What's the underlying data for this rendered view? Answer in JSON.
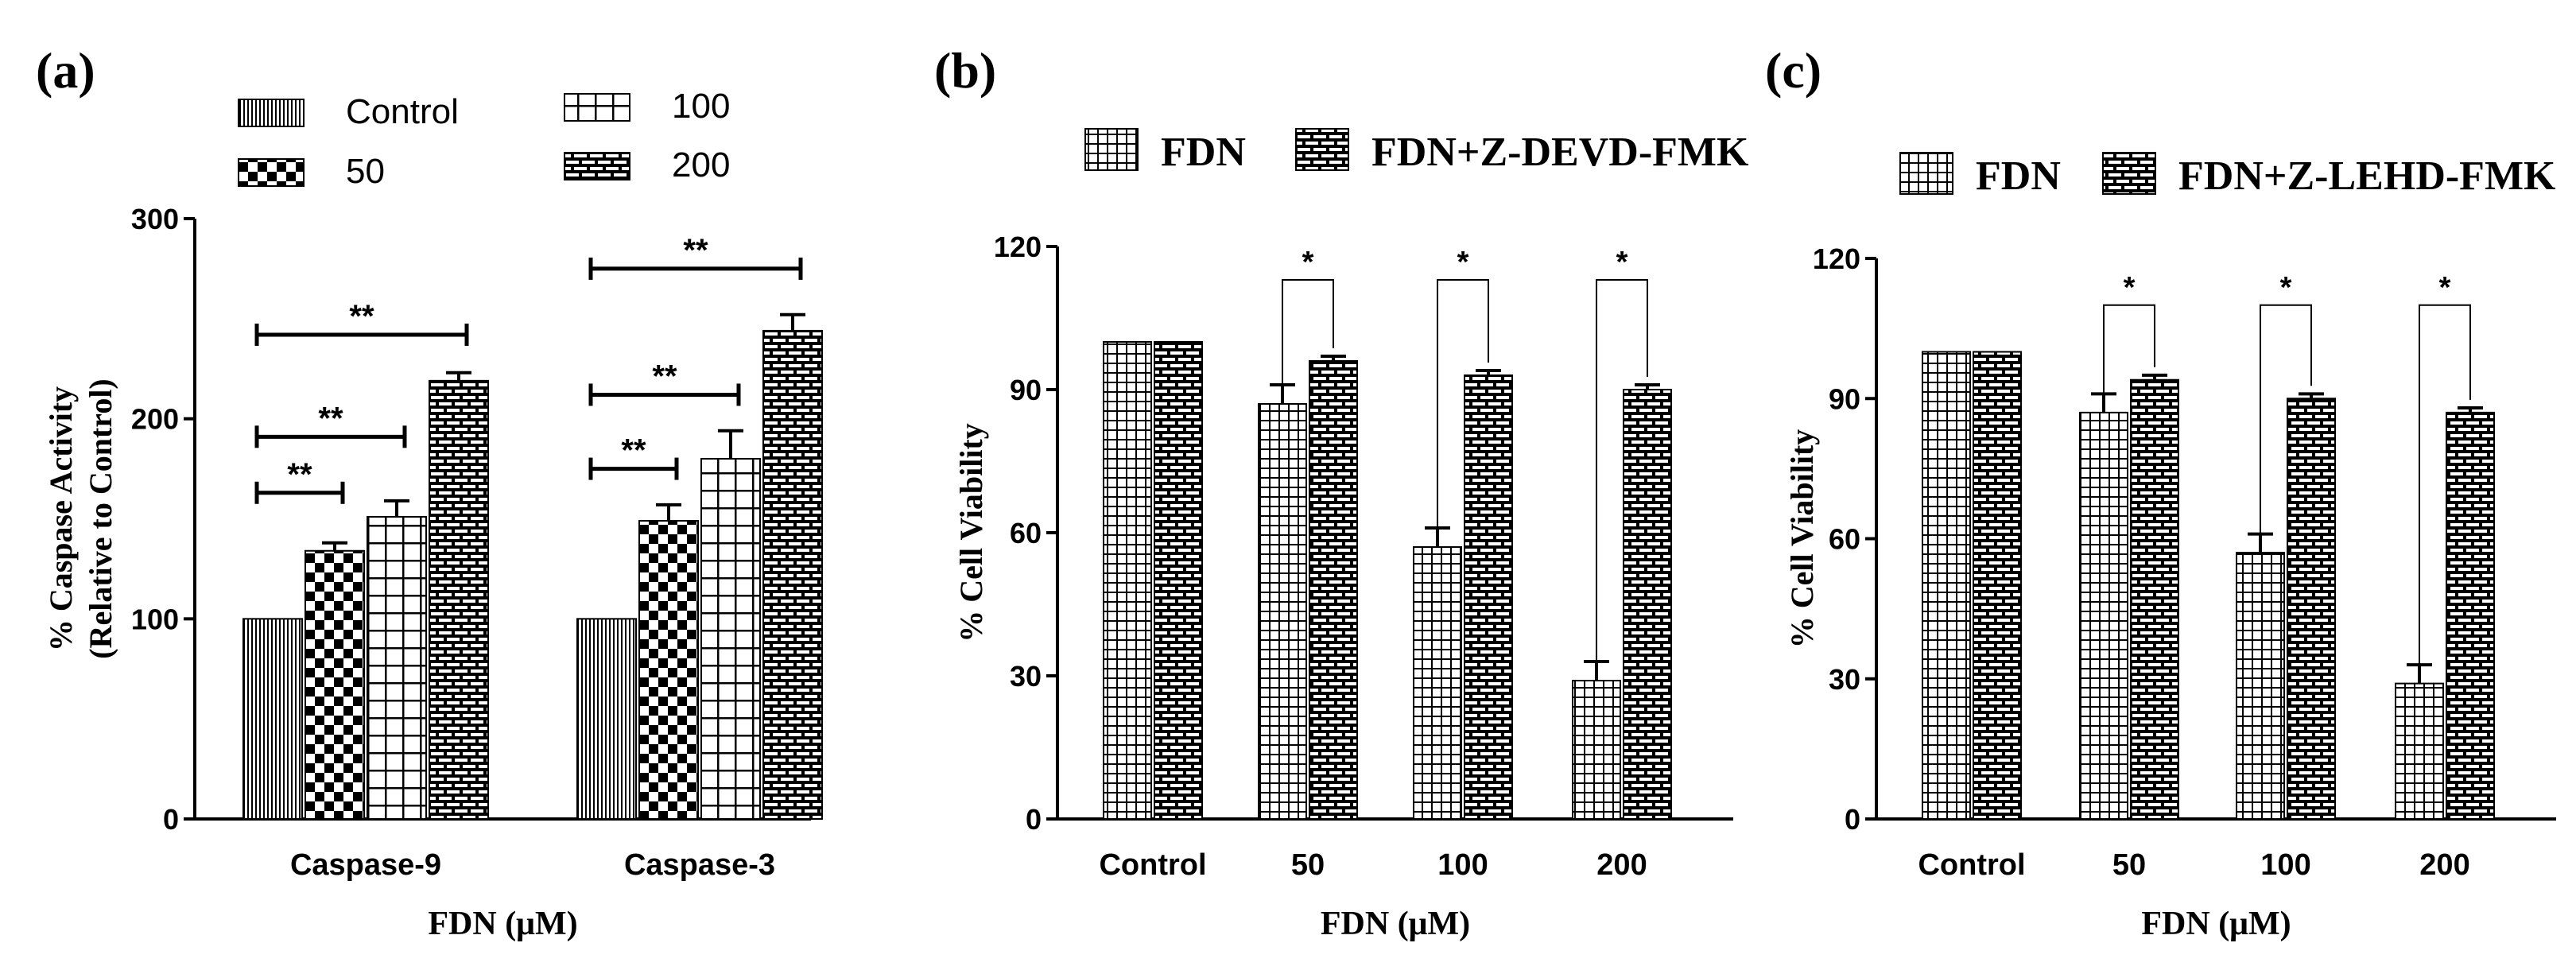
{
  "chart_data": [
    {
      "panel_label": "(a)",
      "type": "bar",
      "xlabel": "FDN (μM)",
      "ylabel_line1": "% Caspase Activity",
      "ylabel_line2": "(Relative to Control)",
      "ylim": [
        0,
        300
      ],
      "yticks": [
        0,
        100,
        200,
        300
      ],
      "ytick_labels": [
        "0",
        "100",
        "200",
        "300"
      ],
      "categories": [
        "Caspase-9",
        "Caspase-3"
      ],
      "legend": [
        "Control",
        "100",
        "50",
        "200"
      ],
      "series": [
        {
          "name": "Control",
          "values": [
            100,
            100
          ],
          "errors": [
            0,
            0
          ]
        },
        {
          "name": "50",
          "values": [
            134,
            149
          ],
          "errors": [
            4,
            8
          ]
        },
        {
          "name": "100",
          "values": [
            151,
            180
          ],
          "errors": [
            8,
            14
          ]
        },
        {
          "name": "200",
          "values": [
            219,
            244
          ],
          "errors": [
            4,
            8
          ]
        }
      ],
      "significance": [
        {
          "category": 0,
          "from": 0,
          "to": 1,
          "y": 163,
          "label": "**"
        },
        {
          "category": 0,
          "from": 0,
          "to": 2,
          "y": 191,
          "label": "**"
        },
        {
          "category": 0,
          "from": 0,
          "to": 3,
          "y": 242,
          "label": "**"
        },
        {
          "category": 1,
          "from": 0,
          "to": 1,
          "y": 175,
          "label": "**"
        },
        {
          "category": 1,
          "from": 0,
          "to": 2,
          "y": 212,
          "label": "**"
        },
        {
          "category": 1,
          "from": 0,
          "to": 3,
          "y": 275,
          "label": "**"
        }
      ]
    },
    {
      "panel_label": "(b)",
      "type": "bar",
      "xlabel": "FDN (μM)",
      "ylabel": "% Cell Viability",
      "ylim": [
        0,
        120
      ],
      "yticks": [
        0,
        30,
        60,
        90,
        120
      ],
      "ytick_labels": [
        "0",
        "30",
        "60",
        "90",
        "120"
      ],
      "categories": [
        "Control",
        "50",
        "100",
        "200"
      ],
      "legend": [
        "FDN",
        "FDN+Z-DEVD-FMK"
      ],
      "series": [
        {
          "name": "FDN",
          "values": [
            100,
            87,
            57,
            29
          ],
          "errors": [
            0,
            4,
            4,
            4
          ]
        },
        {
          "name": "FDN+Z-DEVD-FMK",
          "values": [
            100,
            96,
            93,
            90
          ],
          "errors": [
            0,
            1,
            1,
            1
          ]
        }
      ],
      "significance": [
        {
          "category": 1,
          "label": "*",
          "y": 113
        },
        {
          "category": 2,
          "label": "*",
          "y": 113
        },
        {
          "category": 3,
          "label": "*",
          "y": 113
        }
      ]
    },
    {
      "panel_label": "(c)",
      "type": "bar",
      "xlabel": "FDN (μM)",
      "ylabel": "% Cell Viability",
      "ylim": [
        0,
        120
      ],
      "yticks": [
        0,
        30,
        60,
        90,
        120
      ],
      "ytick_labels": [
        "0",
        "30",
        "60",
        "90",
        "120"
      ],
      "categories": [
        "Control",
        "50",
        "100",
        "200"
      ],
      "legend": [
        "FDN",
        "FDN+Z-LEHD-FMK"
      ],
      "series": [
        {
          "name": "FDN",
          "values": [
            100,
            87,
            57,
            29
          ],
          "errors": [
            0,
            4,
            4,
            4
          ]
        },
        {
          "name": "FDN+Z-LEHD-FMK",
          "values": [
            100,
            94,
            90,
            87
          ],
          "errors": [
            0,
            1,
            1,
            1
          ]
        }
      ],
      "significance": [
        {
          "category": 1,
          "label": "*",
          "y": 110
        },
        {
          "category": 2,
          "label": "*",
          "y": 110
        },
        {
          "category": 3,
          "label": "*",
          "y": 110
        }
      ]
    }
  ]
}
